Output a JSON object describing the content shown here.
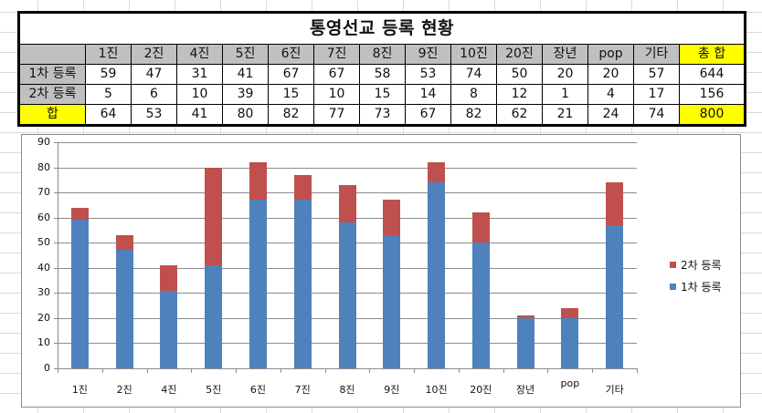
{
  "table": {
    "title": "통영선교 등록 현황",
    "columns": [
      "1진",
      "2진",
      "4진",
      "5진",
      "6진",
      "7진",
      "8진",
      "9진",
      "10진",
      "20진",
      "장년",
      "pop",
      "기타"
    ],
    "total_header": "총 합",
    "rows": [
      {
        "label": "1차 등록",
        "values": [
          "59",
          "47",
          "31",
          "41",
          "67",
          "67",
          "58",
          "53",
          "74",
          "50",
          "20",
          "20",
          "57"
        ],
        "total": "644"
      },
      {
        "label": "2차 등록",
        "values": [
          "5",
          "6",
          "10",
          "39",
          "15",
          "10",
          "15",
          "14",
          "8",
          "12",
          "1",
          "4",
          "17"
        ],
        "total": "156"
      },
      {
        "label": "합",
        "values": [
          "64",
          "53",
          "41",
          "80",
          "82",
          "77",
          "73",
          "67",
          "82",
          "62",
          "21",
          "24",
          "74"
        ],
        "total": "800"
      }
    ]
  },
  "colors": {
    "header_gray": "#c0c0c0",
    "highlight_yellow": "#ffff00",
    "series_1": "#4f81bd",
    "series_2": "#c0504d"
  },
  "chart_data": {
    "type": "bar",
    "stacked": true,
    "title": "",
    "xlabel": "",
    "ylabel": "",
    "categories": [
      "1진",
      "2진",
      "4진",
      "5진",
      "6진",
      "7진",
      "8진",
      "9진",
      "10진",
      "20진",
      "장년",
      "pop",
      "기타"
    ],
    "series": [
      {
        "name": "1차 등록",
        "color": "#4f81bd",
        "values": [
          59,
          47,
          31,
          41,
          67,
          67,
          58,
          53,
          74,
          50,
          20,
          20,
          57
        ]
      },
      {
        "name": "2차 등록",
        "color": "#c0504d",
        "values": [
          5,
          6,
          10,
          39,
          15,
          10,
          15,
          14,
          8,
          12,
          1,
          4,
          17
        ]
      }
    ],
    "ylim": [
      0,
      90
    ],
    "yticks": [
      "0",
      "10",
      "20",
      "30",
      "40",
      "50",
      "60",
      "70",
      "80",
      "90"
    ],
    "grid": true,
    "legend_position": "right",
    "legend": [
      "2차 등록",
      "1차 등록"
    ]
  }
}
